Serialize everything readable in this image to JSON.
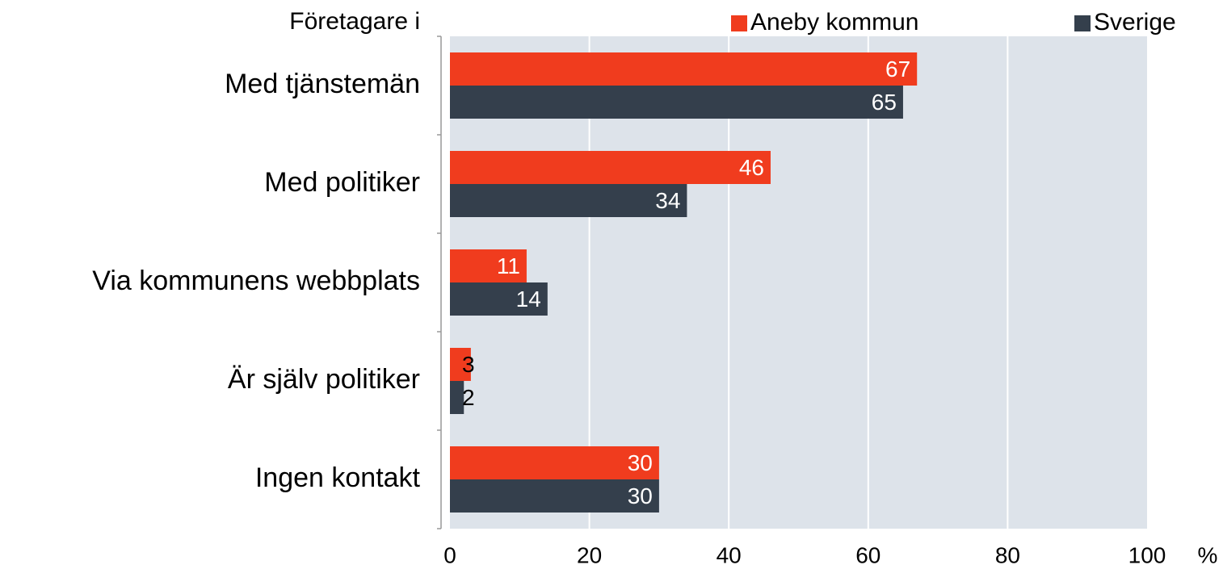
{
  "chart_data": {
    "type": "hbar",
    "legend_title": "Företagare i",
    "x_label": "%",
    "categories": [
      "Med tjänstemän",
      "Med politiker",
      "Via kommunens webbplats",
      "Är själv politiker",
      "Ingen kontakt"
    ],
    "series": [
      {
        "name": "Aneby kommun",
        "color": "#f03c1e",
        "values": [
          67,
          46,
          11,
          3,
          30
        ]
      },
      {
        "name": "Sverige",
        "color": "#343f4c",
        "values": [
          65,
          34,
          14,
          2,
          30
        ]
      }
    ],
    "xlim": [
      0,
      100
    ],
    "xticks": [
      0,
      20,
      40,
      60,
      80,
      100
    ],
    "grid": true,
    "plot_background": "#dde3ea"
  }
}
